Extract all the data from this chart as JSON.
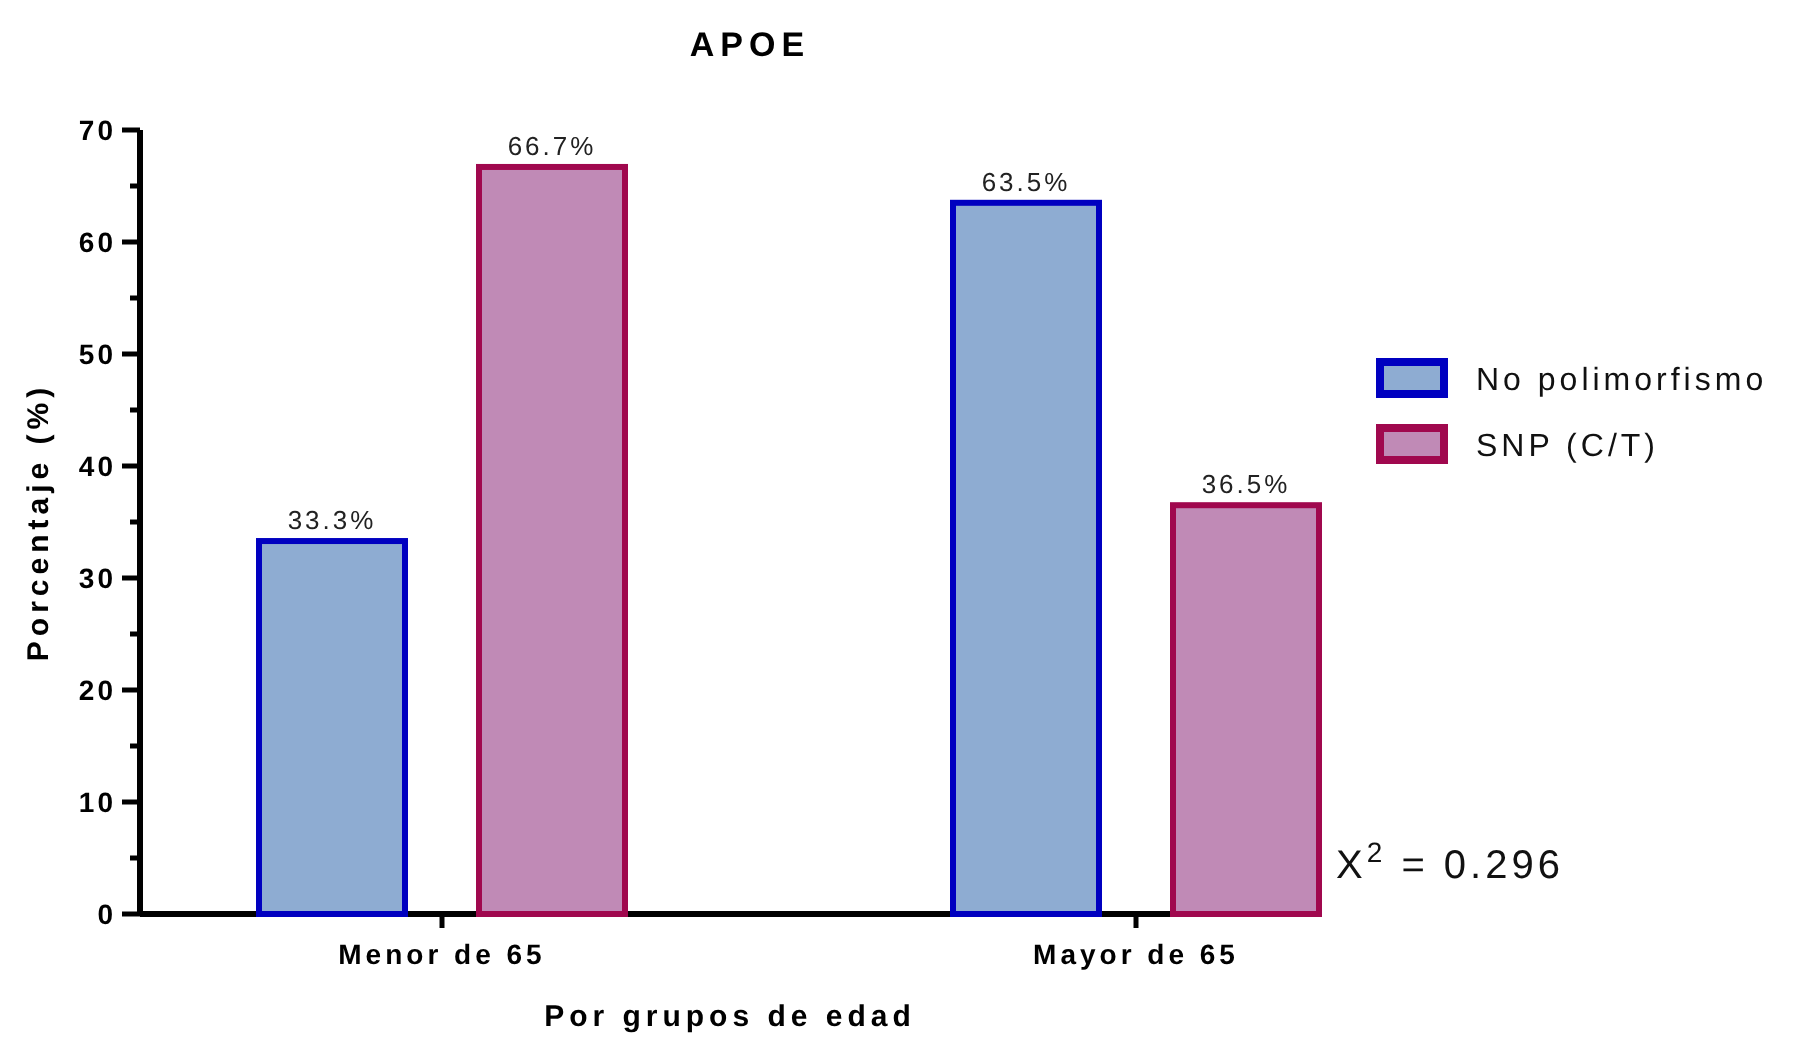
{
  "chart_data": {
    "type": "bar",
    "title": "APOE",
    "xlabel": "Por grupos de edad",
    "ylabel": "Porcentaje (%)",
    "categories": [
      "Menor de 65",
      "Mayor de 65"
    ],
    "series": [
      {
        "name": "No polimorfismo",
        "color": "#8eacd2",
        "values": [
          33.3,
          63.5
        ],
        "value_labels": [
          "33.3%",
          "63.5%"
        ]
      },
      {
        "name": "SNP (C/T)",
        "color": "#c08ab6",
        "values": [
          66.7,
          36.5
        ],
        "value_labels": [
          "66.7%",
          "36.5%"
        ]
      }
    ],
    "ylim": [
      0,
      70
    ],
    "yticks": [
      0,
      {
        "value": 5,
        "label": null
      },
      10,
      {
        "value": 15,
        "label": null
      },
      20,
      {
        "value": 25,
        "label": null
      },
      30,
      {
        "value": 35,
        "label": null
      },
      40,
      {
        "value": 45,
        "label": null
      },
      50,
      {
        "value": 55,
        "label": null
      },
      60,
      {
        "value": 65,
        "label": null
      },
      70
    ],
    "legend": "right",
    "annotations": [
      "X$^{2}$ = 0.296"
    ]
  }
}
